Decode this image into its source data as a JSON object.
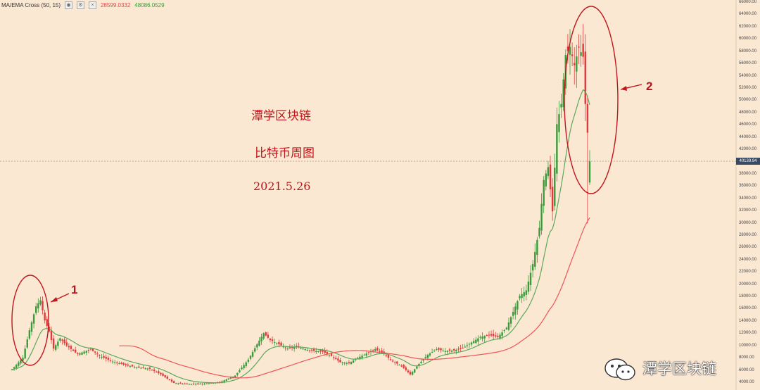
{
  "indicator": {
    "name": "MA/EMA Cross (50, 15)",
    "value_slow": "28599.0332",
    "value_fast": "48086.0529"
  },
  "annotations": {
    "title": "潭学区块链",
    "subtitle": "比特币周图",
    "date": "2021.5.26",
    "marker_1": "1",
    "marker_2": "2"
  },
  "price_tag": "40139.94",
  "watermark": "潭学区块链",
  "colors": {
    "up": "#3b9b3b",
    "down": "#e03a3a",
    "ema": "#5aa85a",
    "ma": "#f05555",
    "circle": "#c0161c",
    "background": "#fbe8d3"
  },
  "chart_data": {
    "type": "candlestick",
    "series": [
      {
        "name": "EMA 15"
      },
      {
        "name": "MA 50"
      }
    ],
    "y_ticks": [
      66000,
      64000,
      62000,
      60000,
      58000,
      56000,
      54000,
      52000,
      50000,
      48000,
      46000,
      44000,
      42000,
      40000,
      38000,
      36000,
      34000,
      32000,
      30000,
      28000,
      26000,
      24000,
      22000,
      20000,
      18000,
      16000,
      14000,
      12000,
      10000,
      8000,
      6000,
      4000
    ],
    "ylim": [
      3600,
      66500
    ],
    "current_price": 40139.94
  }
}
